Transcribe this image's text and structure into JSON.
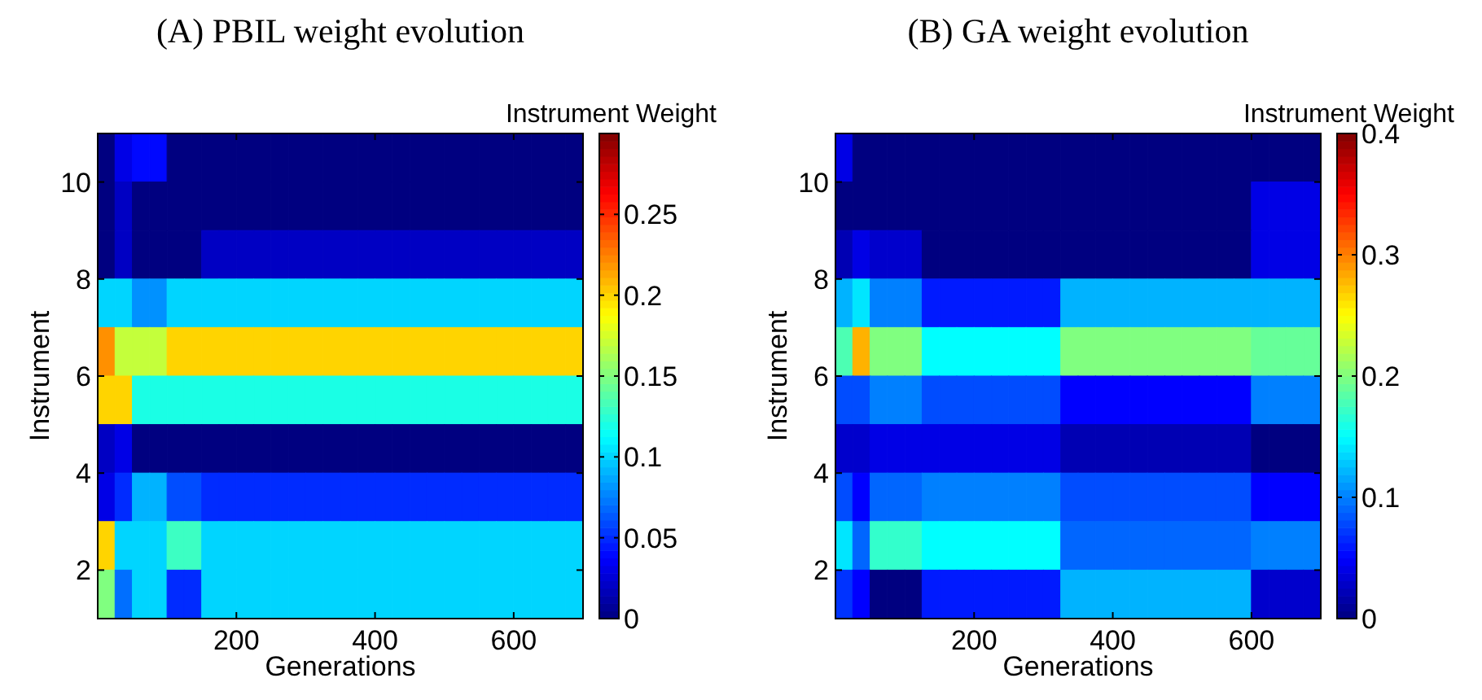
{
  "chart_data": [
    {
      "type": "heatmap",
      "title": "(A) PBIL weight evolution",
      "xlabel": "Generations",
      "ylabel": "Instrument",
      "clabel": "Instrument Weight",
      "x": [
        12.5,
        37.5,
        62.5,
        87.5,
        112.5,
        137.5,
        162.5,
        187.5,
        212.5,
        237.5,
        262.5,
        287.5,
        312.5,
        337.5,
        362.5,
        387.5,
        412.5,
        437.5,
        462.5,
        487.5,
        512.5,
        537.5,
        562.5,
        587.5,
        612.5,
        637.5,
        662.5,
        687.5
      ],
      "y": [
        10.5,
        9.5,
        8.5,
        7.5,
        6.5,
        5.5,
        4.5,
        3.5,
        2.5,
        1.5
      ],
      "cells": [
        [
          0,
          0.03,
          0.04,
          0.04,
          0,
          0,
          0,
          0,
          0,
          0,
          0,
          0,
          0,
          0,
          0,
          0,
          0,
          0,
          0,
          0,
          0,
          0,
          0,
          0,
          0,
          0,
          0,
          0
        ],
        [
          0,
          0.02,
          0,
          0,
          0,
          0,
          0,
          0,
          0,
          0,
          0,
          0,
          0,
          0,
          0,
          0,
          0,
          0,
          0,
          0,
          0,
          0,
          0,
          0,
          0,
          0,
          0,
          0
        ],
        [
          0,
          0.02,
          0,
          0,
          0,
          0,
          0.02,
          0.02,
          0.02,
          0.02,
          0.02,
          0.02,
          0.02,
          0.02,
          0.02,
          0.02,
          0.02,
          0.02,
          0.02,
          0.02,
          0.02,
          0.02,
          0.02,
          0.02,
          0.02,
          0.02,
          0.02,
          0.02
        ],
        [
          0.1,
          0.1,
          0.08,
          0.08,
          0.1,
          0.1,
          0.1,
          0.1,
          0.1,
          0.1,
          0.1,
          0.1,
          0.1,
          0.1,
          0.1,
          0.1,
          0.1,
          0.1,
          0.1,
          0.1,
          0.1,
          0.1,
          0.1,
          0.1,
          0.1,
          0.1,
          0.1,
          0.1
        ],
        [
          0.22,
          0.17,
          0.17,
          0.17,
          0.2,
          0.2,
          0.2,
          0.2,
          0.2,
          0.2,
          0.2,
          0.2,
          0.2,
          0.2,
          0.2,
          0.2,
          0.2,
          0.2,
          0.2,
          0.2,
          0.2,
          0.2,
          0.2,
          0.2,
          0.2,
          0.2,
          0.2,
          0.2
        ],
        [
          0.2,
          0.2,
          0.12,
          0.12,
          0.12,
          0.12,
          0.12,
          0.12,
          0.12,
          0.12,
          0.12,
          0.12,
          0.12,
          0.12,
          0.12,
          0.12,
          0.12,
          0.12,
          0.12,
          0.12,
          0.12,
          0.12,
          0.12,
          0.12,
          0.12,
          0.12,
          0.12,
          0.12
        ],
        [
          0.02,
          0.03,
          0,
          0,
          0,
          0,
          0,
          0,
          0,
          0,
          0,
          0,
          0,
          0,
          0,
          0,
          0,
          0,
          0,
          0,
          0,
          0,
          0,
          0,
          0,
          0,
          0,
          0
        ],
        [
          0.03,
          0.05,
          0.09,
          0.09,
          0.06,
          0.06,
          0.05,
          0.05,
          0.05,
          0.05,
          0.05,
          0.05,
          0.05,
          0.05,
          0.05,
          0.05,
          0.05,
          0.05,
          0.05,
          0.05,
          0.05,
          0.05,
          0.05,
          0.05,
          0.05,
          0.05,
          0.05,
          0.05
        ],
        [
          0.2,
          0.1,
          0.1,
          0.1,
          0.13,
          0.13,
          0.1,
          0.1,
          0.1,
          0.1,
          0.1,
          0.1,
          0.1,
          0.1,
          0.1,
          0.1,
          0.1,
          0.1,
          0.1,
          0.1,
          0.1,
          0.1,
          0.1,
          0.1,
          0.1,
          0.1,
          0.1,
          0.1
        ],
        [
          0.15,
          0.07,
          0.1,
          0.1,
          0.05,
          0.05,
          0.1,
          0.1,
          0.1,
          0.1,
          0.1,
          0.1,
          0.1,
          0.1,
          0.1,
          0.1,
          0.1,
          0.1,
          0.1,
          0.1,
          0.1,
          0.1,
          0.1,
          0.1,
          0.1,
          0.1,
          0.1,
          0.1
        ]
      ],
      "xlim": [
        0,
        700
      ],
      "xticks": [
        200,
        400,
        600
      ],
      "ylim": [
        1,
        11
      ],
      "yticks": [
        2,
        4,
        6,
        8,
        10
      ],
      "clim": [
        0,
        0.3
      ],
      "cticks": [
        0,
        0.05,
        0.1,
        0.15,
        0.2,
        0.25
      ]
    },
    {
      "type": "heatmap",
      "title": "(B) GA weight evolution",
      "xlabel": "Generations",
      "ylabel": "Instrument",
      "clabel": "Instrument Weight",
      "x": [
        12.5,
        37.5,
        62.5,
        87.5,
        112.5,
        137.5,
        162.5,
        187.5,
        212.5,
        237.5,
        262.5,
        287.5,
        312.5,
        337.5,
        362.5,
        387.5,
        412.5,
        437.5,
        462.5,
        487.5,
        512.5,
        537.5,
        562.5,
        587.5,
        612.5,
        637.5,
        662.5,
        687.5
      ],
      "y": [
        10.5,
        9.5,
        8.5,
        7.5,
        6.5,
        5.5,
        4.5,
        3.5,
        2.5,
        1.5
      ],
      "cells": [
        [
          0.04,
          0,
          0,
          0,
          0,
          0,
          0,
          0,
          0,
          0,
          0,
          0,
          0,
          0,
          0,
          0,
          0,
          0,
          0,
          0,
          0,
          0,
          0,
          0,
          0,
          0,
          0,
          0
        ],
        [
          0,
          0,
          0,
          0,
          0,
          0,
          0,
          0,
          0,
          0,
          0,
          0,
          0,
          0,
          0,
          0,
          0,
          0,
          0,
          0,
          0,
          0,
          0,
          0,
          0.04,
          0.04,
          0.04,
          0.04
        ],
        [
          0.02,
          0.04,
          0.03,
          0.03,
          0.03,
          0,
          0,
          0,
          0,
          0,
          0,
          0,
          0,
          0,
          0,
          0,
          0,
          0,
          0,
          0,
          0,
          0,
          0,
          0,
          0.04,
          0.04,
          0.04,
          0.04
        ],
        [
          0.12,
          0.14,
          0.1,
          0.1,
          0.1,
          0.06,
          0.06,
          0.06,
          0.06,
          0.06,
          0.06,
          0.06,
          0.06,
          0.12,
          0.12,
          0.12,
          0.12,
          0.12,
          0.12,
          0.12,
          0.12,
          0.12,
          0.12,
          0.12,
          0.12,
          0.12,
          0.12,
          0.12
        ],
        [
          0.18,
          0.28,
          0.2,
          0.2,
          0.2,
          0.15,
          0.15,
          0.15,
          0.15,
          0.15,
          0.15,
          0.15,
          0.15,
          0.2,
          0.2,
          0.2,
          0.2,
          0.2,
          0.2,
          0.2,
          0.2,
          0.2,
          0.2,
          0.2,
          0.19,
          0.19,
          0.19,
          0.19
        ],
        [
          0.08,
          0.08,
          0.1,
          0.1,
          0.1,
          0.08,
          0.08,
          0.08,
          0.08,
          0.08,
          0.08,
          0.08,
          0.08,
          0.05,
          0.05,
          0.05,
          0.05,
          0.05,
          0.05,
          0.05,
          0.05,
          0.05,
          0.05,
          0.05,
          0.1,
          0.1,
          0.1,
          0.1
        ],
        [
          0.03,
          0.03,
          0.04,
          0.04,
          0.04,
          0.04,
          0.04,
          0.04,
          0.04,
          0.04,
          0.04,
          0.04,
          0.04,
          0.02,
          0.02,
          0.02,
          0.02,
          0.02,
          0.02,
          0.02,
          0.02,
          0.02,
          0.02,
          0.02,
          0,
          0,
          0,
          0
        ],
        [
          0.08,
          0.05,
          0.09,
          0.09,
          0.09,
          0.1,
          0.1,
          0.1,
          0.1,
          0.1,
          0.1,
          0.1,
          0.1,
          0.08,
          0.08,
          0.08,
          0.08,
          0.08,
          0.08,
          0.08,
          0.08,
          0.08,
          0.08,
          0.08,
          0.05,
          0.05,
          0.05,
          0.05
        ],
        [
          0.14,
          0.09,
          0.17,
          0.17,
          0.17,
          0.15,
          0.15,
          0.15,
          0.15,
          0.15,
          0.15,
          0.15,
          0.15,
          0.09,
          0.09,
          0.09,
          0.09,
          0.09,
          0.09,
          0.09,
          0.09,
          0.09,
          0.09,
          0.09,
          0.1,
          0.1,
          0.1,
          0.1
        ],
        [
          0.07,
          0.05,
          0,
          0,
          0,
          0.06,
          0.06,
          0.06,
          0.06,
          0.06,
          0.06,
          0.06,
          0.06,
          0.12,
          0.12,
          0.12,
          0.12,
          0.12,
          0.12,
          0.12,
          0.12,
          0.12,
          0.12,
          0.12,
          0.03,
          0.03,
          0.03,
          0.03
        ]
      ],
      "xlim": [
        0,
        700
      ],
      "xticks": [
        200,
        400,
        600
      ],
      "ylim": [
        1,
        11
      ],
      "yticks": [
        2,
        4,
        6,
        8,
        10
      ],
      "clim": [
        0,
        0.4
      ],
      "cticks": [
        0,
        0.1,
        0.2,
        0.3,
        0.4
      ]
    }
  ]
}
